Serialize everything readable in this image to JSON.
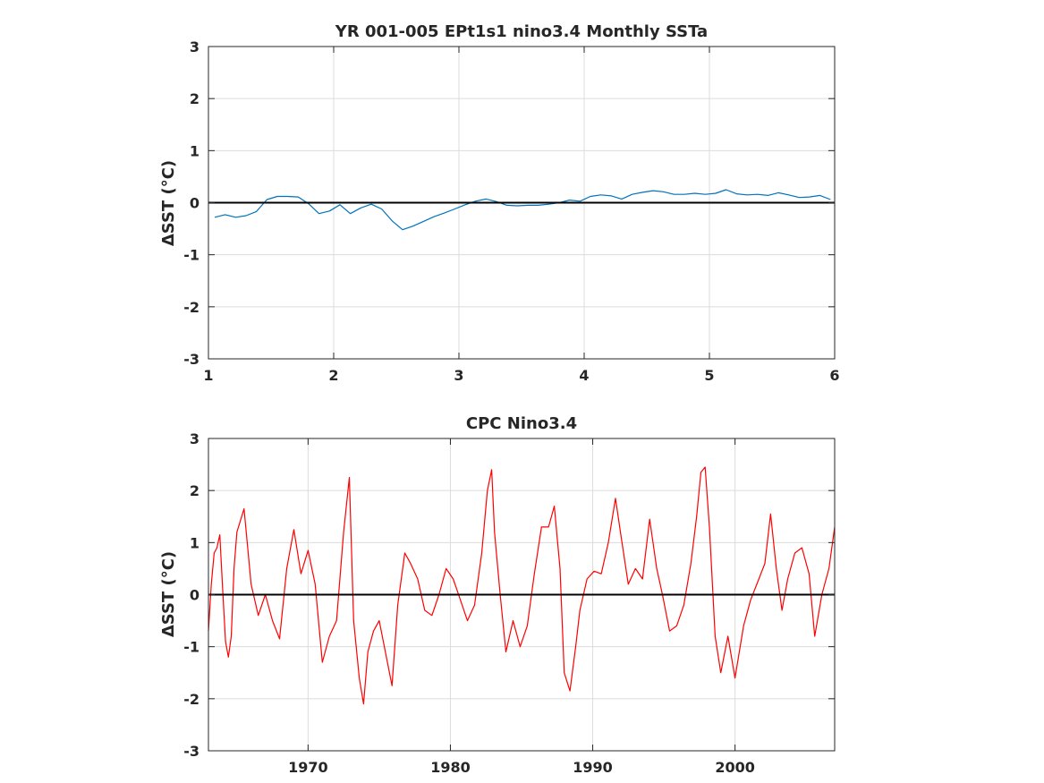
{
  "chart_data": [
    {
      "type": "line",
      "title": "YR 001-005 EPt1s1 nino3.4 Monthly SSTa",
      "xlabel": "",
      "ylabel": "ΔSST (°C)",
      "xlim": [
        1,
        6
      ],
      "ylim": [
        -3,
        3
      ],
      "xticks": [
        1,
        2,
        3,
        4,
        5,
        6
      ],
      "xtick_labels": [
        "1",
        "2",
        "3",
        "4",
        "5",
        "6"
      ],
      "yticks": [
        -3,
        -2,
        -1,
        0,
        1,
        2,
        3
      ],
      "ytick_labels": [
        "-3",
        "-2",
        "-1",
        "0",
        "1",
        "2",
        "3"
      ],
      "grid": true,
      "reference_line": 0,
      "series": [
        {
          "color": "#0072BD",
          "x": [
            1.05,
            1.133,
            1.217,
            1.3,
            1.383,
            1.467,
            1.55,
            1.633,
            1.717,
            1.8,
            1.883,
            1.967,
            2.05,
            2.133,
            2.217,
            2.3,
            2.383,
            2.467,
            2.55,
            2.633,
            2.717,
            2.8,
            2.883,
            2.967,
            3.05,
            3.133,
            3.217,
            3.3,
            3.383,
            3.467,
            3.55,
            3.633,
            3.717,
            3.8,
            3.883,
            3.967,
            4.05,
            4.133,
            4.217,
            4.3,
            4.383,
            4.467,
            4.55,
            4.633,
            4.717,
            4.8,
            4.883,
            4.967,
            5.05,
            5.133,
            5.217,
            5.3,
            5.383,
            5.467,
            5.55,
            5.633,
            5.717,
            5.8,
            5.883,
            5.967
          ],
          "values": [
            -0.28,
            -0.23,
            -0.28,
            -0.25,
            -0.17,
            0.06,
            0.12,
            0.12,
            0.11,
            -0.02,
            -0.21,
            -0.16,
            -0.04,
            -0.21,
            -0.1,
            -0.03,
            -0.12,
            -0.35,
            -0.52,
            -0.45,
            -0.36,
            -0.27,
            -0.2,
            -0.12,
            -0.04,
            0.03,
            0.07,
            0.02,
            -0.05,
            -0.06,
            -0.05,
            -0.05,
            -0.03,
            0.0,
            0.05,
            0.03,
            0.12,
            0.15,
            0.13,
            0.07,
            0.16,
            0.2,
            0.23,
            0.21,
            0.16,
            0.16,
            0.18,
            0.16,
            0.18,
            0.25,
            0.17,
            0.15,
            0.16,
            0.14,
            0.19,
            0.15,
            0.1,
            0.11,
            0.14,
            0.06
          ]
        }
      ]
    },
    {
      "type": "line",
      "title": "CPC Nino3.4",
      "xlabel": "",
      "ylabel": "ΔSST (°C)",
      "xlim": [
        1963,
        2007
      ],
      "ylim": [
        -3,
        3
      ],
      "xticks": [
        1970,
        1980,
        1990,
        2000
      ],
      "xtick_labels": [
        "1970",
        "1980",
        "1990",
        "2000"
      ],
      "yticks": [
        -3,
        -2,
        -1,
        0,
        1,
        2,
        3
      ],
      "ytick_labels": [
        "-3",
        "-2",
        "-1",
        "0",
        "1",
        "2",
        "3"
      ],
      "grid": true,
      "reference_line": 0,
      "series": [
        {
          "color": "#FF0000",
          "x": [
            1963.0,
            1963.2,
            1963.4,
            1963.6,
            1963.8,
            1964.0,
            1964.2,
            1964.4,
            1964.6,
            1964.8,
            1965.0,
            1965.5,
            1966.0,
            1966.5,
            1967.0,
            1967.5,
            1968.0,
            1968.5,
            1969.0,
            1969.5,
            1970.0,
            1970.5,
            1971.0,
            1971.5,
            1972.0,
            1972.5,
            1972.9,
            1973.2,
            1973.6,
            1973.9,
            1974.2,
            1974.6,
            1975.0,
            1975.5,
            1975.9,
            1976.3,
            1976.8,
            1977.2,
            1977.7,
            1978.2,
            1978.7,
            1979.2,
            1979.7,
            1980.2,
            1980.7,
            1981.2,
            1981.7,
            1982.2,
            1982.6,
            1982.9,
            1983.1,
            1983.5,
            1983.9,
            1984.4,
            1984.9,
            1985.4,
            1985.9,
            1986.4,
            1986.9,
            1987.3,
            1987.7,
            1988.0,
            1988.4,
            1988.8,
            1989.1,
            1989.6,
            1990.1,
            1990.6,
            1991.1,
            1991.6,
            1992.0,
            1992.5,
            1993.0,
            1993.5,
            1994.0,
            1994.5,
            1994.9,
            1995.4,
            1995.9,
            1996.4,
            1996.9,
            1997.3,
            1997.6,
            1997.9,
            1998.2,
            1998.6,
            1999.0,
            1999.5,
            2000.0,
            2000.6,
            2001.1,
            2001.6,
            2002.1,
            2002.5,
            2002.9,
            2003.3,
            2003.7,
            2004.2,
            2004.7,
            2005.2,
            2005.6,
            2006.1,
            2006.6,
            2007.0
          ],
          "values": [
            -0.7,
            0.2,
            0.8,
            0.9,
            1.15,
            0.1,
            -0.9,
            -1.2,
            -0.8,
            0.5,
            1.2,
            1.65,
            0.2,
            -0.4,
            0.0,
            -0.5,
            -0.85,
            0.5,
            1.25,
            0.4,
            0.85,
            0.2,
            -1.3,
            -0.8,
            -0.5,
            1.2,
            2.25,
            -0.5,
            -1.6,
            -2.1,
            -1.1,
            -0.7,
            -0.5,
            -1.2,
            -1.75,
            -0.2,
            0.8,
            0.6,
            0.3,
            -0.3,
            -0.4,
            0.0,
            0.5,
            0.3,
            -0.1,
            -0.5,
            -0.2,
            0.8,
            2.0,
            2.4,
            1.2,
            0.0,
            -1.1,
            -0.5,
            -1.0,
            -0.6,
            0.4,
            1.3,
            1.3,
            1.7,
            0.5,
            -1.5,
            -1.85,
            -1.0,
            -0.3,
            0.3,
            0.45,
            0.4,
            1.0,
            1.85,
            1.1,
            0.2,
            0.5,
            0.3,
            1.45,
            0.5,
            0.0,
            -0.7,
            -0.6,
            -0.2,
            0.6,
            1.5,
            2.35,
            2.45,
            1.3,
            -0.8,
            -1.5,
            -0.8,
            -1.6,
            -0.6,
            -0.1,
            0.25,
            0.6,
            1.55,
            0.5,
            -0.3,
            0.3,
            0.8,
            0.9,
            0.4,
            -0.8,
            0.0,
            0.5,
            1.3
          ]
        }
      ]
    }
  ]
}
